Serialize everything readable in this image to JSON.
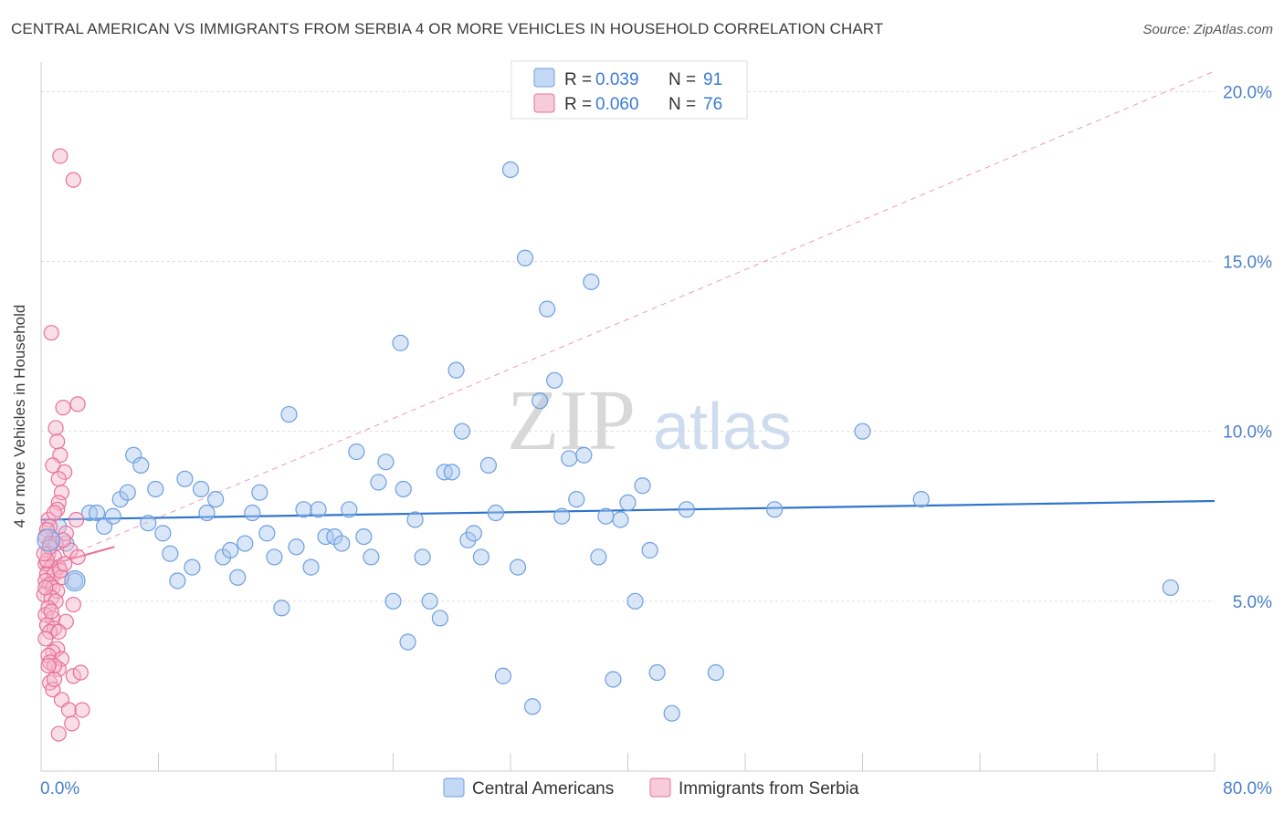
{
  "title": "CENTRAL AMERICAN VS IMMIGRANTS FROM SERBIA 4 OR MORE VEHICLES IN HOUSEHOLD CORRELATION CHART",
  "source": "Source: ZipAtlas.com",
  "watermark": {
    "zip": "ZIP",
    "atlas": "atlas"
  },
  "colors": {
    "blue": "#6d9fe0",
    "blue_fill": "#aac8ef",
    "blue_line": "#2f74cc",
    "pink": "#e8709a",
    "pink_fill": "#f4b6ca",
    "pink_line": "#e8709a",
    "axis_text": "#4a7fc8",
    "grid": "#dddddd"
  },
  "legend_top": [
    {
      "series": "Central Americans",
      "r_label": "R =",
      "r_value": "0.039",
      "n_label": "N =",
      "n_value": "91",
      "color": "blue"
    },
    {
      "series": "Immigrants from Serbia",
      "r_label": "R =",
      "r_value": "0.060",
      "n_label": "N =",
      "n_value": "76",
      "color": "pink"
    }
  ],
  "chart_data": {
    "type": "scatter",
    "title": "CENTRAL AMERICAN VS IMMIGRANTS FROM SERBIA 4 OR MORE VEHICLES IN HOUSEHOLD CORRELATION CHART",
    "xlabel": "",
    "ylabel": "4 or more Vehicles in Household",
    "xlim": [
      0,
      80
    ],
    "ylim": [
      0,
      20.6
    ],
    "x_tick_labels": [
      "0.0%",
      "80.0%"
    ],
    "y_ticks": [
      5,
      10,
      15,
      20
    ],
    "y_tick_labels": [
      "5.0%",
      "10.0%",
      "15.0%",
      "20.0%"
    ],
    "legend": [
      "Central Americans",
      "Immigrants from Serbia"
    ],
    "series": [
      {
        "name": "Central Americans",
        "color": "blue",
        "trend": {
          "x": [
            0,
            80
          ],
          "y": [
            7.4,
            7.95
          ],
          "style": "solid"
        },
        "points": [
          [
            0.8,
            6.8
          ],
          [
            1.7,
            6.7
          ],
          [
            2.3,
            5.6
          ],
          [
            3.3,
            7.6
          ],
          [
            3.8,
            7.6
          ],
          [
            4.3,
            7.2
          ],
          [
            4.9,
            7.5
          ],
          [
            5.4,
            8
          ],
          [
            5.9,
            8.2
          ],
          [
            6.3,
            9.3
          ],
          [
            6.8,
            9
          ],
          [
            7.3,
            7.3
          ],
          [
            7.8,
            8.3
          ],
          [
            8.3,
            7
          ],
          [
            8.8,
            6.4
          ],
          [
            9.3,
            5.6
          ],
          [
            9.8,
            8.6
          ],
          [
            10.3,
            6
          ],
          [
            10.9,
            8.3
          ],
          [
            11.3,
            7.6
          ],
          [
            11.9,
            8
          ],
          [
            12.4,
            6.3
          ],
          [
            12.9,
            6.5
          ],
          [
            13.4,
            5.7
          ],
          [
            13.9,
            6.7
          ],
          [
            14.4,
            7.6
          ],
          [
            14.9,
            8.2
          ],
          [
            15.4,
            7
          ],
          [
            15.9,
            6.3
          ],
          [
            16.4,
            4.8
          ],
          [
            16.9,
            10.5
          ],
          [
            17.4,
            6.6
          ],
          [
            17.9,
            7.7
          ],
          [
            18.4,
            6
          ],
          [
            18.9,
            7.7
          ],
          [
            19.4,
            6.9
          ],
          [
            20,
            6.9
          ],
          [
            20.5,
            6.7
          ],
          [
            21,
            7.7
          ],
          [
            21.5,
            9.4
          ],
          [
            22,
            6.9
          ],
          [
            22.5,
            6.3
          ],
          [
            23,
            8.5
          ],
          [
            23.5,
            9.1
          ],
          [
            24,
            5
          ],
          [
            24.5,
            12.6
          ],
          [
            24.7,
            8.3
          ],
          [
            25,
            3.8
          ],
          [
            25.5,
            7.4
          ],
          [
            26,
            6.3
          ],
          [
            26.5,
            5
          ],
          [
            27.2,
            4.5
          ],
          [
            27.5,
            8.8
          ],
          [
            28,
            8.8
          ],
          [
            28.3,
            11.8
          ],
          [
            28.7,
            10
          ],
          [
            29.1,
            6.8
          ],
          [
            29.5,
            7
          ],
          [
            30,
            6.3
          ],
          [
            30.5,
            9
          ],
          [
            31,
            7.6
          ],
          [
            31.5,
            2.8
          ],
          [
            32,
            17.7
          ],
          [
            32.5,
            6
          ],
          [
            33,
            15.1
          ],
          [
            33.5,
            1.9
          ],
          [
            34,
            10.9
          ],
          [
            34.5,
            13.6
          ],
          [
            35,
            11.5
          ],
          [
            35.5,
            7.5
          ],
          [
            36,
            9.2
          ],
          [
            36.5,
            8
          ],
          [
            37,
            9.3
          ],
          [
            37.5,
            14.4
          ],
          [
            38,
            6.3
          ],
          [
            38.5,
            7.5
          ],
          [
            39,
            2.7
          ],
          [
            39.5,
            7.4
          ],
          [
            40,
            7.9
          ],
          [
            40.5,
            5
          ],
          [
            41,
            8.4
          ],
          [
            41.5,
            6.5
          ],
          [
            42,
            2.9
          ],
          [
            43,
            1.7
          ],
          [
            44,
            7.7
          ],
          [
            46,
            2.9
          ],
          [
            50,
            7.7
          ],
          [
            56,
            10
          ],
          [
            60,
            8
          ],
          [
            77,
            5.4
          ],
          [
            1.2,
            7.2
          ]
        ]
      },
      {
        "name": "Immigrants from Serbia",
        "color": "pink",
        "trend": {
          "x": [
            0,
            5
          ],
          "y": [
            6.0,
            6.6
          ],
          "style": "solid"
        },
        "trend_extended": {
          "x": [
            0,
            80
          ],
          "y": [
            6.0,
            20.6
          ],
          "style": "dashed"
        },
        "points": [
          [
            1.3,
            18.1
          ],
          [
            2.2,
            17.4
          ],
          [
            0.7,
            12.9
          ],
          [
            1.5,
            10.7
          ],
          [
            2.5,
            10.8
          ],
          [
            1,
            10.1
          ],
          [
            1.1,
            9.7
          ],
          [
            1.3,
            9.3
          ],
          [
            0.8,
            9
          ],
          [
            1.6,
            8.8
          ],
          [
            1.2,
            8.6
          ],
          [
            1.4,
            8.2
          ],
          [
            1.2,
            7.9
          ],
          [
            2.4,
            7.4
          ],
          [
            1.1,
            7.7
          ],
          [
            0.5,
            7.4
          ],
          [
            0.6,
            7.2
          ],
          [
            1.7,
            7
          ],
          [
            0.4,
            7.1
          ],
          [
            0.3,
            6.9
          ],
          [
            0.6,
            6.7
          ],
          [
            1,
            6.7
          ],
          [
            0.5,
            6.4
          ],
          [
            0.9,
            6.3
          ],
          [
            2,
            6.5
          ],
          [
            2.5,
            6.3
          ],
          [
            0.3,
            6.1
          ],
          [
            0.7,
            6
          ],
          [
            1.2,
            6
          ],
          [
            0.4,
            5.8
          ],
          [
            0.9,
            5.8
          ],
          [
            1.4,
            5.7
          ],
          [
            0.3,
            5.6
          ],
          [
            0.6,
            5.5
          ],
          [
            0.8,
            5.4
          ],
          [
            1.1,
            5.3
          ],
          [
            0.2,
            5.2
          ],
          [
            0.7,
            5.1
          ],
          [
            1,
            5
          ],
          [
            2.2,
            4.9
          ],
          [
            0.5,
            4.8
          ],
          [
            0.3,
            4.6
          ],
          [
            0.8,
            4.5
          ],
          [
            1.7,
            4.4
          ],
          [
            0.4,
            4.3
          ],
          [
            0.9,
            4.2
          ],
          [
            0.6,
            4.1
          ],
          [
            1.2,
            4.1
          ],
          [
            0.3,
            3.9
          ],
          [
            1.1,
            3.6
          ],
          [
            0.8,
            3.5
          ],
          [
            0.5,
            3.4
          ],
          [
            1.4,
            3.3
          ],
          [
            0.6,
            3.2
          ],
          [
            1.2,
            3
          ],
          [
            0.9,
            3.1
          ],
          [
            2.2,
            2.8
          ],
          [
            2.7,
            2.9
          ],
          [
            0.6,
            2.6
          ],
          [
            0.8,
            2.4
          ],
          [
            1.4,
            2.1
          ],
          [
            1.9,
            1.8
          ],
          [
            2.8,
            1.8
          ],
          [
            1.2,
            1.1
          ],
          [
            2.1,
            1.4
          ],
          [
            0.4,
            6.2
          ],
          [
            0.6,
            6.6
          ],
          [
            1.5,
            6.8
          ],
          [
            0.9,
            7.6
          ],
          [
            0.3,
            5.4
          ],
          [
            0.7,
            4.7
          ],
          [
            1.3,
            5.9
          ],
          [
            0.5,
            3.1
          ],
          [
            0.9,
            2.7
          ],
          [
            1.6,
            6.1
          ],
          [
            0.2,
            6.4
          ]
        ]
      }
    ]
  }
}
